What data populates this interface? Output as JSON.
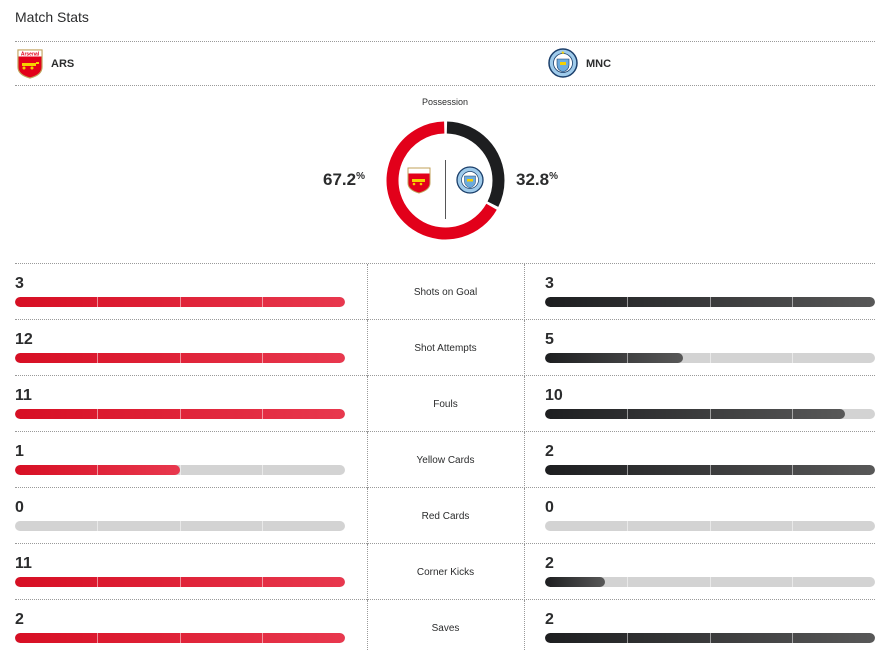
{
  "header": {
    "title": "Match Stats"
  },
  "teams": {
    "home": {
      "abbr": "ARS",
      "crest_icon": "arsenal-crest-icon",
      "crest_text": "Arsenal",
      "color": "#d70f24"
    },
    "away": {
      "abbr": "MNC",
      "crest_icon": "manchester-city-crest-icon",
      "color": "#1d1e20"
    }
  },
  "possession": {
    "label": "Possession",
    "home_value": "67.2",
    "away_value": "32.8",
    "unit": "%",
    "home_fraction": 0.672,
    "away_fraction": 0.328
  },
  "stats": [
    {
      "label": "Shots on Goal",
      "home": "3",
      "away": "3",
      "home_fill": 1.0,
      "away_fill": 1.0
    },
    {
      "label": "Shot Attempts",
      "home": "12",
      "away": "5",
      "home_fill": 1.0,
      "away_fill": 0.417
    },
    {
      "label": "Fouls",
      "home": "11",
      "away": "10",
      "home_fill": 1.0,
      "away_fill": 0.909
    },
    {
      "label": "Yellow Cards",
      "home": "1",
      "away": "2",
      "home_fill": 0.5,
      "away_fill": 1.0
    },
    {
      "label": "Red Cards",
      "home": "0",
      "away": "0",
      "home_fill": 0,
      "away_fill": 0
    },
    {
      "label": "Corner Kicks",
      "home": "11",
      "away": "2",
      "home_fill": 1.0,
      "away_fill": 0.182
    },
    {
      "label": "Saves",
      "home": "2",
      "away": "2",
      "home_fill": 1.0,
      "away_fill": 1.0
    }
  ],
  "colors": {
    "home": "#d70f24",
    "away": "#1d1e20",
    "empty": "#d3d3d3"
  }
}
